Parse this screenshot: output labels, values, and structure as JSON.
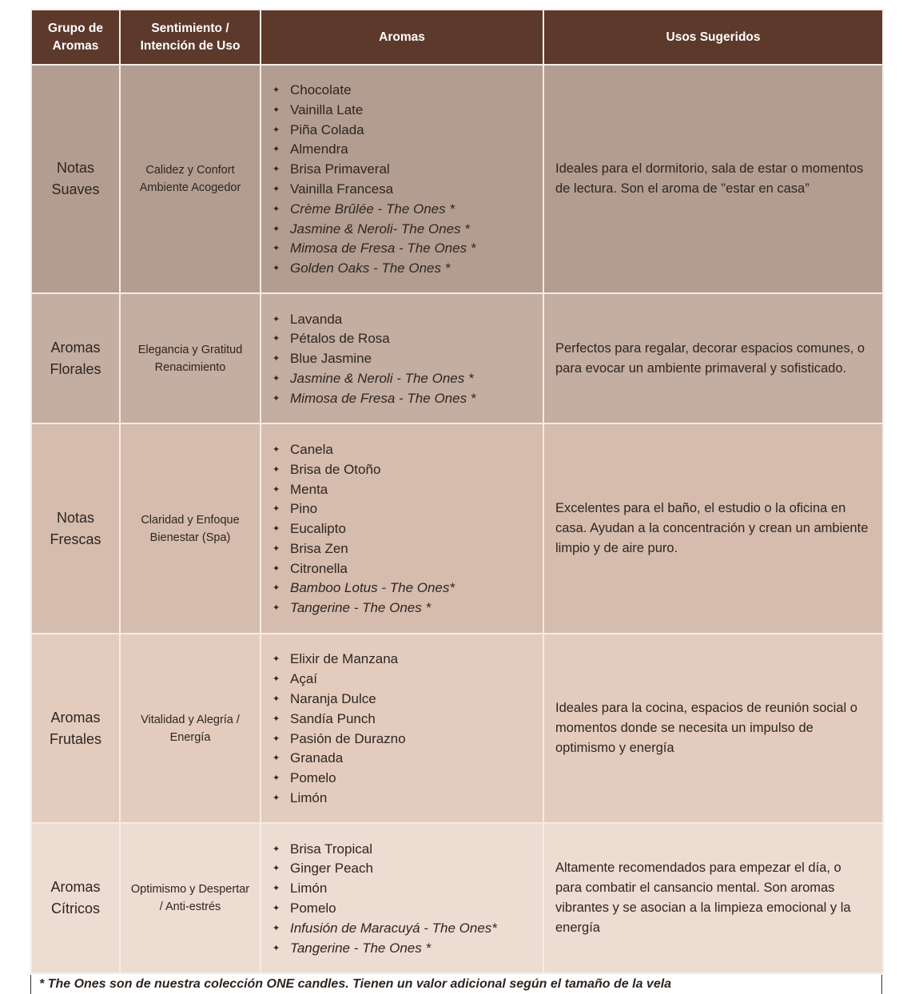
{
  "colors": {
    "header": "#5d392c",
    "row1": "#b39d91",
    "row2": "#c4ada1",
    "row3": "#d5bcad",
    "row4": "#e3ccbe",
    "row5": "#eddcd2"
  },
  "bullet_icon": "four-pointed-star",
  "headers": [
    "Grupo de Aromas",
    "Sentimiento / Intención de Uso",
    "Aromas",
    "Usos Sugeridos"
  ],
  "rows": [
    {
      "group": "Notas Suaves",
      "feeling": "Calidez y Confort Ambiente Acogedor",
      "aromas": [
        {
          "name": "Chocolate",
          "the_ones": false
        },
        {
          "name": "Vainilla Late",
          "the_ones": false
        },
        {
          "name": "Piña Colada",
          "the_ones": false
        },
        {
          "name": "Almendra",
          "the_ones": false
        },
        {
          "name": "Brisa Primaveral",
          "the_ones": false
        },
        {
          "name": "Vainilla Francesa",
          "the_ones": false
        },
        {
          "name": "Crème Brûlée - The Ones *",
          "the_ones": true
        },
        {
          "name": "Jasmine & Neroli- The Ones *",
          "the_ones": true
        },
        {
          "name": "Mimosa de Fresa - The Ones *",
          "the_ones": true
        },
        {
          "name": "Golden Oaks - The Ones *",
          "the_ones": true
        }
      ],
      "uses": "Ideales para el dormitorio, sala de estar o momentos de lectura. Son el aroma de \"estar en casa”"
    },
    {
      "group": "Aromas Florales",
      "feeling": "Elegancia y Gratitud Renacimiento",
      "aromas": [
        {
          "name": "Lavanda",
          "the_ones": false
        },
        {
          "name": "Pétalos de Rosa",
          "the_ones": false
        },
        {
          "name": "Blue Jasmine",
          "the_ones": false
        },
        {
          "name": "Jasmine & Neroli - The Ones *",
          "the_ones": true
        },
        {
          "name": "Mimosa de Fresa - The Ones *",
          "the_ones": true
        }
      ],
      "uses": "Perfectos para regalar, decorar espacios comunes, o para evocar un ambiente primaveral y sofisticado."
    },
    {
      "group": "Notas Frescas",
      "feeling": "Claridad y Enfoque  Bienestar (Spa)",
      "aromas": [
        {
          "name": "Canela",
          "the_ones": false
        },
        {
          "name": "Brisa de Otoño",
          "the_ones": false
        },
        {
          "name": "Menta",
          "the_ones": false
        },
        {
          "name": "Pino",
          "the_ones": false
        },
        {
          "name": "Eucalipto",
          "the_ones": false
        },
        {
          "name": "Brisa Zen",
          "the_ones": false
        },
        {
          "name": "Citronella",
          "the_ones": false
        },
        {
          "name": "Bamboo Lotus - The Ones*",
          "the_ones": true
        },
        {
          "name": "Tangerine - The Ones *",
          "the_ones": true
        }
      ],
      "uses": "Excelentes para el baño, el estudio o la oficina en casa. Ayudan a la concentración y crean un ambiente limpio y de aire puro."
    },
    {
      "group": "Aromas Frutales",
      "feeling": "Vitalidad y Alegría / Energía",
      "aromas": [
        {
          "name": "Elixir de Manzana",
          "the_ones": false
        },
        {
          "name": "Açaí",
          "the_ones": false
        },
        {
          "name": "Naranja Dulce",
          "the_ones": false
        },
        {
          "name": "Sandía Punch",
          "the_ones": false
        },
        {
          "name": "Pasión de Durazno",
          "the_ones": false
        },
        {
          "name": "Granada",
          "the_ones": false
        },
        {
          "name": "Pomelo",
          "the_ones": false
        },
        {
          "name": "Limón",
          "the_ones": false
        }
      ],
      "uses": "Ideales para la cocina, espacios de reunión social o momentos donde se necesita un impulso de optimismo y energía"
    },
    {
      "group": "Aromas Cítricos",
      "feeling": "Optimismo y Despertar / Anti-estrés",
      "aromas": [
        {
          "name": "Brisa Tropical",
          "the_ones": false
        },
        {
          "name": "Ginger Peach",
          "the_ones": false
        },
        {
          "name": "Limón",
          "the_ones": false
        },
        {
          "name": "Pomelo",
          "the_ones": false
        },
        {
          "name": "Infusión de Maracuyá  - The Ones*",
          "the_ones": true
        },
        {
          "name": "Tangerine - The Ones *",
          "the_ones": true
        }
      ],
      "uses": "Altamente recomendados para empezar el día, o para combatir el cansancio mental. Son aromas vibrantes y se asocian a la limpieza emocional y la energía"
    }
  ],
  "footnote": "* The Ones son de nuestra colección ONE candles. Tienen un valor adicional según el tamaño de la vela"
}
